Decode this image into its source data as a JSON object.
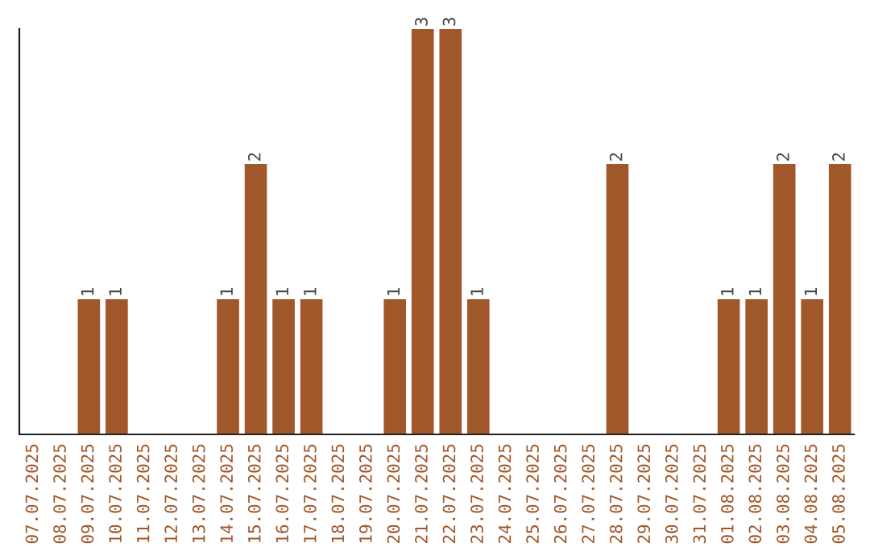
{
  "chart_data": {
    "type": "bar",
    "categories": [
      "07.07.2025",
      "08.07.2025",
      "09.07.2025",
      "10.07.2025",
      "11.07.2025",
      "12.07.2025",
      "13.07.2025",
      "14.07.2025",
      "15.07.2025",
      "16.07.2025",
      "17.07.2025",
      "18.07.2025",
      "19.07.2025",
      "20.07.2025",
      "21.07.2025",
      "22.07.2025",
      "23.07.2025",
      "24.07.2025",
      "25.07.2025",
      "26.07.2025",
      "27.07.2025",
      "28.07.2025",
      "29.07.2025",
      "30.07.2025",
      "31.07.2025",
      "01.08.2025",
      "02.08.2025",
      "03.08.2025",
      "04.08.2025",
      "05.08.2025"
    ],
    "values": [
      0,
      0,
      1,
      1,
      0,
      0,
      0,
      1,
      2,
      1,
      1,
      0,
      0,
      1,
      3,
      3,
      1,
      0,
      0,
      0,
      0,
      2,
      0,
      0,
      0,
      1,
      1,
      2,
      1,
      2
    ],
    "value_labels": [
      null,
      null,
      "1",
      "1",
      null,
      null,
      null,
      "1",
      "2",
      "1",
      "1",
      null,
      null,
      "1",
      "3",
      "3",
      "1",
      null,
      null,
      null,
      null,
      "2",
      null,
      null,
      null,
      "1",
      "1",
      "2",
      "1",
      "2"
    ],
    "color": "#a0582a",
    "ylim": [
      0,
      3
    ],
    "grid": false,
    "legend": false,
    "tick_labels": "x"
  }
}
